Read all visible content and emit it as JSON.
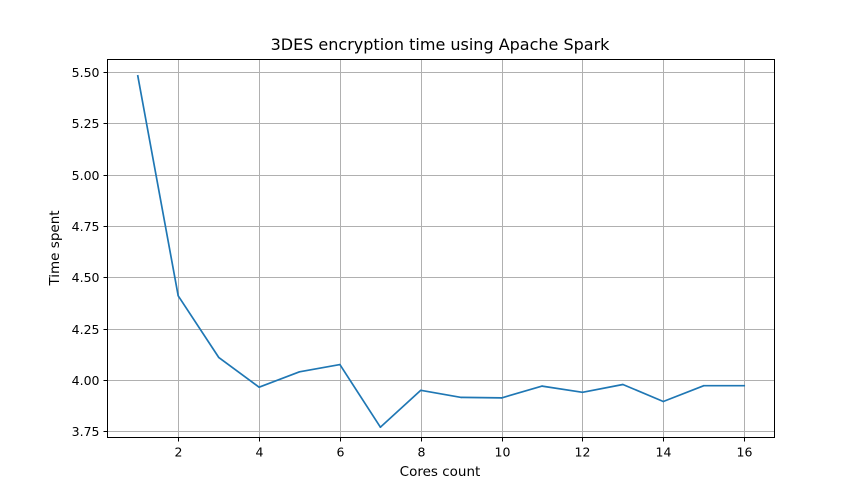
{
  "chart_data": {
    "type": "line",
    "title": "3DES encryption time using Apache Spark",
    "xlabel": "Cores count",
    "ylabel": "Time spent",
    "xlim": [
      0.25,
      16.75
    ],
    "ylim": [
      3.72,
      5.56
    ],
    "grid": true,
    "x_ticks": [
      2,
      4,
      6,
      8,
      10,
      12,
      14,
      16
    ],
    "x_tick_labels": [
      "2",
      "4",
      "6",
      "8",
      "10",
      "12",
      "14",
      "16"
    ],
    "y_ticks": [
      3.75,
      4.0,
      4.25,
      4.5,
      4.75,
      5.0,
      5.25,
      5.5
    ],
    "y_tick_labels": [
      "3.75",
      "4.00",
      "4.25",
      "4.50",
      "4.75",
      "5.00",
      "5.25",
      "5.50"
    ],
    "series": [
      {
        "color": "#1f77b4",
        "x": [
          1,
          2,
          3,
          4,
          5,
          6,
          7,
          8,
          9,
          10,
          11,
          12,
          13,
          14,
          15,
          16
        ],
        "y": [
          5.48,
          4.41,
          4.11,
          3.965,
          4.04,
          4.075,
          3.77,
          3.95,
          3.915,
          3.913,
          3.97,
          3.94,
          3.978,
          3.895,
          3.972,
          3.972
        ]
      }
    ]
  }
}
